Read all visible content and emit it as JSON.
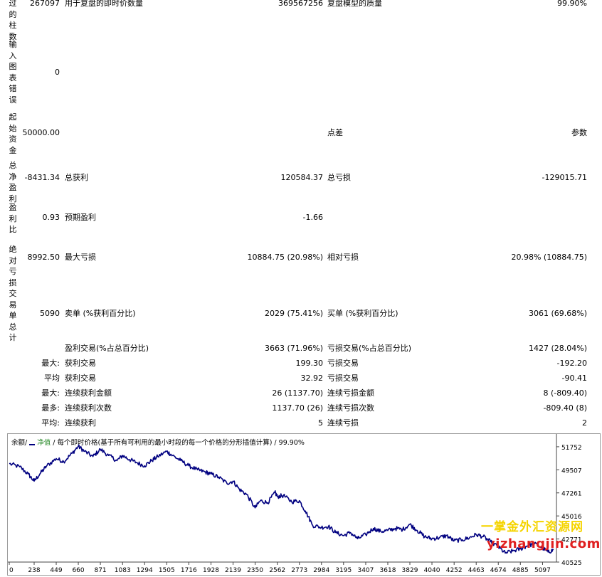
{
  "report": {
    "left_labels": [
      "过的柱数",
      "输入图表错误",
      "起始资金",
      "总净盈利",
      "盈利比",
      "绝对亏损",
      "交易单总计"
    ],
    "rows": [
      {
        "c1": "267097",
        "c2": "用于复盘的即时价数量",
        "c3": "369567256",
        "c4": "复盘模型的质量",
        "c5": "99.90%"
      },
      {
        "c1": "0",
        "c2": "",
        "c3": "",
        "c4": "",
        "c5": ""
      },
      {
        "c1": "50000.00",
        "c2": "",
        "c3": "",
        "c4": "点差",
        "c5": "参数"
      },
      {
        "c1": "-8431.34",
        "c2": "总获利",
        "c3": "120584.37",
        "c4": "总亏损",
        "c5": "-129015.71"
      },
      {
        "c1": "0.93",
        "c2": "预期盈利",
        "c3": "-1.66",
        "c4": "",
        "c5": ""
      },
      {
        "c1": "8992.50",
        "c2": "最大亏损",
        "c3": "10884.75 (20.98%)",
        "c4": "相对亏损",
        "c5": "20.98% (10884.75)"
      },
      {
        "c1": "5090",
        "c2": "卖单 (%获利百分比)",
        "c3": "2029 (75.41%)",
        "c4": "买单 (%获利百分比)",
        "c5": "3061 (69.68%)"
      },
      {
        "c1": "",
        "c2": "盈利交易(%占总百分比)",
        "c3": "3663 (71.96%)",
        "c4": "亏损交易(%占总百分比)",
        "c5": "1427 (28.04%)"
      },
      {
        "c1": "最大:",
        "c2": "获利交易",
        "c3": "199.30",
        "c4": "亏损交易",
        "c5": "-192.20"
      },
      {
        "c1": "平均",
        "c2": "获利交易",
        "c3": "32.92",
        "c4": "亏损交易",
        "c5": "-90.41"
      },
      {
        "c1": "最大:",
        "c2": "连续获利金额",
        "c3": "26 (1137.70)",
        "c4": "连续亏损金额",
        "c5": "8 (-809.40)"
      },
      {
        "c1": "最多:",
        "c2": "连续获利次数",
        "c3": "1137.70 (26)",
        "c4": "连续亏损次数",
        "c5": "-809.40 (8)"
      },
      {
        "c1": "平均:",
        "c2": "连续获利",
        "c3": "5",
        "c4": "连续亏损",
        "c5": "2"
      }
    ]
  },
  "chart": {
    "legend_balance": "余额",
    "legend_equity": "净值",
    "legend_text": "每个即时价格(基于所有可利用的最小时段的每一个价格的分形插值计算)",
    "quality": "99.90%",
    "colors": {
      "balance": "#000080",
      "axis": "#444444",
      "grid": "#c8c8c8"
    }
  },
  "chart_data": {
    "type": "line",
    "x_ticks": [
      0,
      238,
      449,
      660,
      871,
      1083,
      1294,
      1505,
      1716,
      1928,
      2139,
      2350,
      2562,
      2773,
      2984,
      3195,
      3407,
      3618,
      3829,
      4040,
      4252,
      4463,
      4674,
      4885,
      5097
    ],
    "y_ticks": [
      40525,
      42771,
      45016,
      47261,
      49507,
      51752
    ],
    "xlim": [
      0,
      5230
    ],
    "ylim": [
      40525,
      52300
    ],
    "series": [
      {
        "name": "余额",
        "x": [
          0,
          100,
          180,
          238,
          300,
          360,
          449,
          520,
          600,
          660,
          720,
          800,
          871,
          950,
          1030,
          1083,
          1150,
          1220,
          1294,
          1360,
          1420,
          1505,
          1560,
          1640,
          1716,
          1800,
          1870,
          1928,
          2000,
          2080,
          2139,
          2200,
          2270,
          2350,
          2400,
          2470,
          2540,
          2562,
          2620,
          2700,
          2773,
          2830,
          2900,
          2984,
          3050,
          3120,
          3195,
          3260,
          3330,
          3407,
          3480,
          3550,
          3618,
          3690,
          3760,
          3829,
          3900,
          3970,
          4040,
          4110,
          4180,
          4252,
          4330,
          4400,
          4463,
          4530,
          4600,
          4674,
          4740,
          4810,
          4885,
          4950,
          5020,
          5097,
          5150,
          5200
        ],
        "y": [
          50100,
          49800,
          49100,
          48400,
          49200,
          49900,
          50600,
          50300,
          51100,
          51800,
          51300,
          50800,
          51500,
          50900,
          50400,
          50900,
          50500,
          50200,
          49900,
          50400,
          50800,
          51300,
          50900,
          50400,
          49900,
          49500,
          49300,
          49100,
          48800,
          48200,
          48400,
          47600,
          47100,
          45800,
          46500,
          46300,
          47300,
          46900,
          47000,
          46400,
          46500,
          45500,
          44100,
          43900,
          44000,
          43400,
          43100,
          43400,
          42800,
          43200,
          43800,
          43500,
          43600,
          43800,
          43700,
          44200,
          43600,
          43000,
          42800,
          42900,
          43100,
          42600,
          42700,
          42900,
          43200,
          43000,
          42500,
          42000,
          41400,
          41600,
          41800,
          42100,
          42300,
          41900,
          41500,
          41700
        ]
      }
    ]
  },
  "watermark": {
    "line1": "一掌金外汇资源网",
    "line2": "yizhangjin.com"
  }
}
